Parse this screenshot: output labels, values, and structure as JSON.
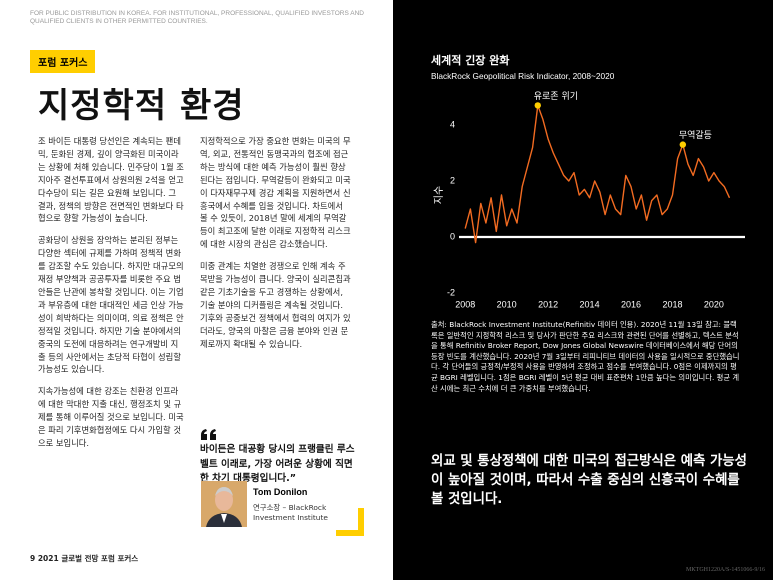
{
  "header": {
    "disclaimer": "FOR PUBLIC DISTRIBUTION IN KOREA. FOR INSTITUTIONAL, PROFESSIONAL, QUALIFIED INVESTORS AND QUALIFIED CLIENTS IN OTHER PERMITTED COUNTRIES.",
    "tag": "포럼 포커스",
    "title": "지정학적 환경"
  },
  "body": {
    "column_1": [
      "조 바이든 대통령 당선인은 계속되는 팬데믹, 둔화된 경제, 깊이 양극화된 미국이라는 상황에 처해 있습니다. 민주당이 1월 조지아주 결선투표에서 상원의원 2석을 얻고 다수당이 되는 길은 요원해 보입니다. 그 결과, 정책의 방향은 전면적인 변화보다 타협으로 향할 가능성이 높습니다.",
      "공화당이 상원을 장악하는 분리된 정부는 다양한 섹터에 규제를 가하며 정책적 변화를 감조할 수도 있습니다. 하지만 대규모의 재정 부양책과 공공투자를 비롯한 주요 법안들은 난관에 봉착할 것입니다. 이는 기업과 부유층에 대한 대대적인 세금 인상 가능성이 희박하다는 의미이며, 의료 정책은 안정적일 것입니다. 하지만 기술 분야에서의 중국의 도전에 대응하려는 연구개발비 지출 등의 사안에서는 초당적 타협이 성립할 가능성도 있습니다.",
      "지속가능성에 대한 강조는 친환경 인프라에 대한 막대한 지출 대신, 행정조치 및 규제를 통해 이루어질 것으로 보입니다. 미국은 파리 기후변화협정에도 다시 가입할 것으로 보입니다."
    ],
    "column_2": [
      "지정학적으로 가장 중요한 변화는 미국의 무역, 외교, 전통적인 동맹국과의 협조에 접근하는 방식에 대한 예측 가능성이 훨씬 향상된다는 점입니다. 무역갈등이 완화되고 미국이 다자재무구제 경감 계획을 지원하면서 신흥국에서 수혜를 입을 것입니다. 차트에서 볼 수 있듯이, 2018년 말에 세계의 무역갈등이 최고조에 달한 이래로 지정학적 리스크에 대한 시장의 관심은 감소했습니다.",
      "미중 관계는 치열한 경쟁으로 인해 계속 주목받을 가능성이 큽니다. 양국이 실리콘칩과 같은 기초기술을 두고 경쟁하는 상황에서, 기술 분야의 디커플링은 계속될 것입니다. 기후와 공중보건 정책에서 협력의 여지가 있더라도, 양국의 마찰은 금융 분야와 인권 문제로까지 확대될 수 있습니다."
    ]
  },
  "quote": {
    "text": "바이든은 대공황 당시의 프랭클린 루스벨트 이래로, 가장 어려운 상황에 직면한 차기 대통령입니다.”",
    "name": "Tom Donilon",
    "role": "연구소장 – BlackRock Investment Institute"
  },
  "footer": {
    "page": "9",
    "label": "2021 글로벌 전망 포럼 포커스",
    "code": "MKTGH1220A/S-1451066-9/16"
  },
  "chart_data": {
    "type": "line",
    "title": "세계적 긴장 완화",
    "subtitle": "BlackRock Geopolitical Risk Indicator, 2008~2020",
    "y_label": "지수",
    "x": [
      2008,
      2008.25,
      2008.5,
      2008.75,
      2009,
      2009.25,
      2009.5,
      2009.75,
      2010,
      2010.25,
      2010.5,
      2010.75,
      2011,
      2011.25,
      2011.5,
      2011.75,
      2012,
      2012.25,
      2012.5,
      2012.75,
      2013,
      2013.25,
      2013.5,
      2013.75,
      2014,
      2014.25,
      2014.5,
      2014.75,
      2015,
      2015.25,
      2015.5,
      2015.75,
      2016,
      2016.25,
      2016.5,
      2016.75,
      2017,
      2017.25,
      2017.5,
      2017.75,
      2018,
      2018.25,
      2018.5,
      2018.75,
      2019,
      2019.25,
      2019.5,
      2019.75,
      2020,
      2020.25,
      2020.5,
      2020.75
    ],
    "series": [
      {
        "name": "BlackRock Geopolitical Risk Indicator",
        "color": "#f26b21",
        "values": [
          0.3,
          1.0,
          -0.2,
          1.2,
          0.5,
          1.4,
          0.2,
          1.5,
          0.4,
          1.0,
          0.5,
          1.8,
          2.5,
          3.2,
          4.7,
          4.2,
          3.5,
          3.0,
          2.6,
          2.2,
          2.0,
          2.3,
          1.5,
          1.7,
          1.4,
          2.0,
          1.6,
          0.8,
          1.5,
          1.0,
          0.8,
          2.2,
          1.8,
          1.0,
          1.5,
          0.6,
          1.3,
          1.5,
          0.8,
          1.0,
          1.5,
          2.8,
          3.3,
          2.6,
          2.2,
          2.8,
          2.5,
          2.0,
          2.3,
          2.0,
          1.8,
          1.4
        ]
      }
    ],
    "annotations": [
      {
        "text": "유로존 위기",
        "x": 2011.5,
        "y": 4.7,
        "color": "#ffce00"
      },
      {
        "text": "무역갈등",
        "x": 2018.5,
        "y": 3.3,
        "color": "#ffce00"
      }
    ],
    "xlim": [
      2007.7,
      2021.5
    ],
    "xticks": [
      2008,
      2010,
      2012,
      2014,
      2016,
      2018,
      2020
    ],
    "ylim": [
      -2,
      5
    ],
    "yticks": [
      -2,
      0,
      2,
      4
    ],
    "zero_line": true,
    "grid": false
  },
  "source_note": "출처: BlackRock Investment Institute(Refinitiv 데이터 인용). 2020년 11월 13일 참고: 블랙록은 일반적인 지정학적 리스크 및 당사가 판단한 주요 리스크와 관련된 단어를 선별하고, 텍스트 분석을 통해 Refinitiv Broker Report, Dow Jones Global Newswire 데이터베이스에서 해당 단어의 등장 빈도를 계산했습니다. 2020년 7월 3일부터 리피니티브 데이터의 사용을 일시적으로 중단했습니다. 각 단어들의 긍정적/부정적 사용을 반영하여 조정하고 점수를 부여했습니다. 0점은 이제까지의 평균 BGRI 레벨입니다. 1점은 BGRI 레벨이 5년 평균 대비 표준편차 1만큼 높다는 의미입니다. 평균 계산 시에는 최근 수치에 더 큰 가중치를 부여했습니다.",
  "callout": "외교 및 통상정책에 대한 미국의 접근방식은 예측 가능성이 높아질 것이며, 따라서 수출 중심의 신흥국이 수혜를 볼 것입니다."
}
